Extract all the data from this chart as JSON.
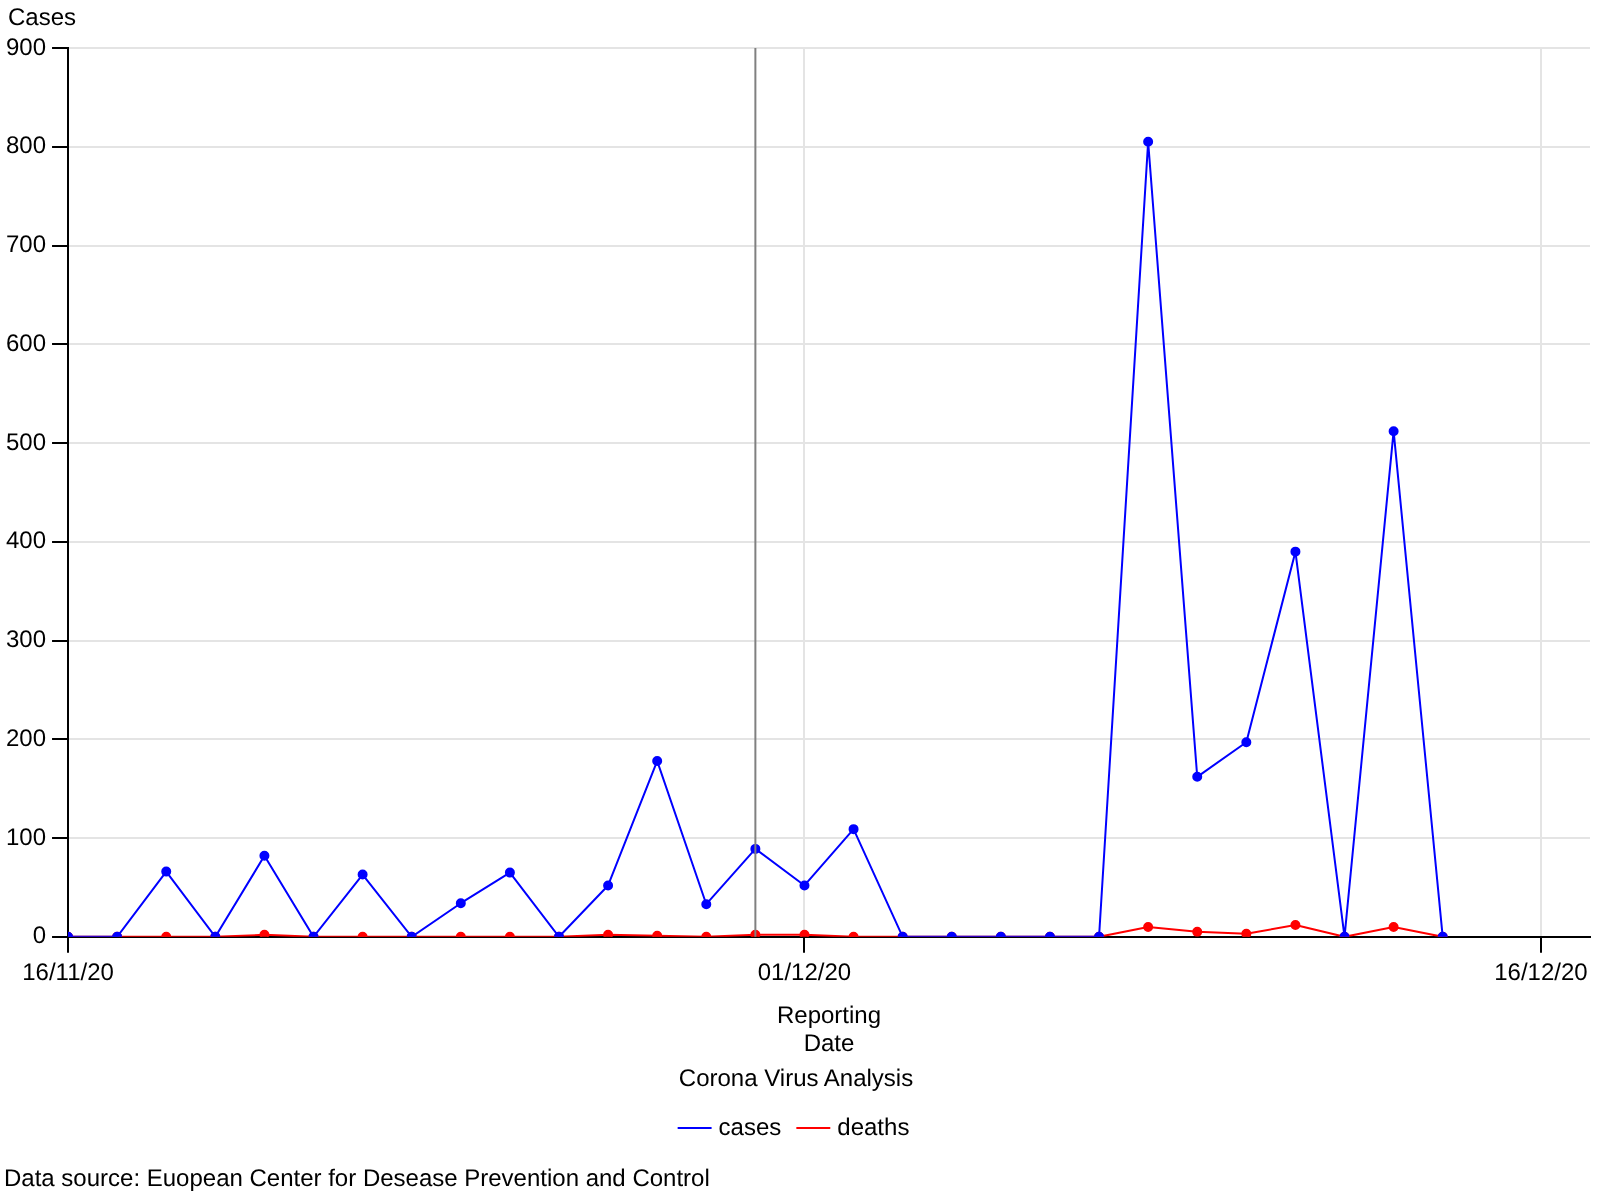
{
  "chart_data": {
    "type": "line",
    "ylabel": "Cases",
    "xlabel": "Reporting Date",
    "legend_title": "Corona Virus Analysis",
    "legend": "bottom",
    "grid": true,
    "marker": "circle",
    "line_style": "solid",
    "x": [
      "2020-11-16",
      "2020-11-17",
      "2020-11-18",
      "2020-11-19",
      "2020-11-20",
      "2020-11-21",
      "2020-11-22",
      "2020-11-23",
      "2020-11-24",
      "2020-11-25",
      "2020-11-26",
      "2020-11-27",
      "2020-11-28",
      "2020-11-29",
      "2020-11-30",
      "2020-12-01",
      "2020-12-02",
      "2020-12-03",
      "2020-12-04",
      "2020-12-05",
      "2020-12-06",
      "2020-12-07",
      "2020-12-08",
      "2020-12-09",
      "2020-12-10",
      "2020-12-11",
      "2020-12-12",
      "2020-12-13",
      "2020-12-14"
    ],
    "series": [
      {
        "name": "cases",
        "color": "#0000ff",
        "values": [
          0,
          0,
          66,
          0,
          82,
          0,
          63,
          0,
          34,
          65,
          0,
          52,
          178,
          33,
          89,
          52,
          109,
          0,
          0,
          0,
          0,
          0,
          805,
          162,
          197,
          390,
          0,
          512,
          0
        ]
      },
      {
        "name": "deaths",
        "color": "#ff0000",
        "values": [
          0,
          0,
          0,
          0,
          2,
          0,
          0,
          0,
          0,
          0,
          0,
          2,
          1,
          0,
          2,
          2,
          0,
          0,
          0,
          0,
          0,
          0,
          10,
          5,
          3,
          12,
          0,
          10,
          0
        ]
      }
    ],
    "xlim": [
      "2020-11-16",
      "2020-12-17"
    ],
    "xticks": [
      {
        "value": "2020-11-16",
        "label": "16/11/20"
      },
      {
        "value": "2020-12-01",
        "label": "01/12/20"
      },
      {
        "value": "2020-12-16",
        "label": "16/12/20"
      }
    ],
    "ylim": [
      0,
      900
    ],
    "yticks": [
      0,
      100,
      200,
      300,
      400,
      500,
      600,
      700,
      800,
      900
    ],
    "ref_lines": [
      {
        "axis": "x",
        "value": "2020-11-30",
        "color": "#808080"
      }
    ],
    "annotations": [
      "Data source: Euopean Center for Desease Prevention and Control"
    ]
  }
}
